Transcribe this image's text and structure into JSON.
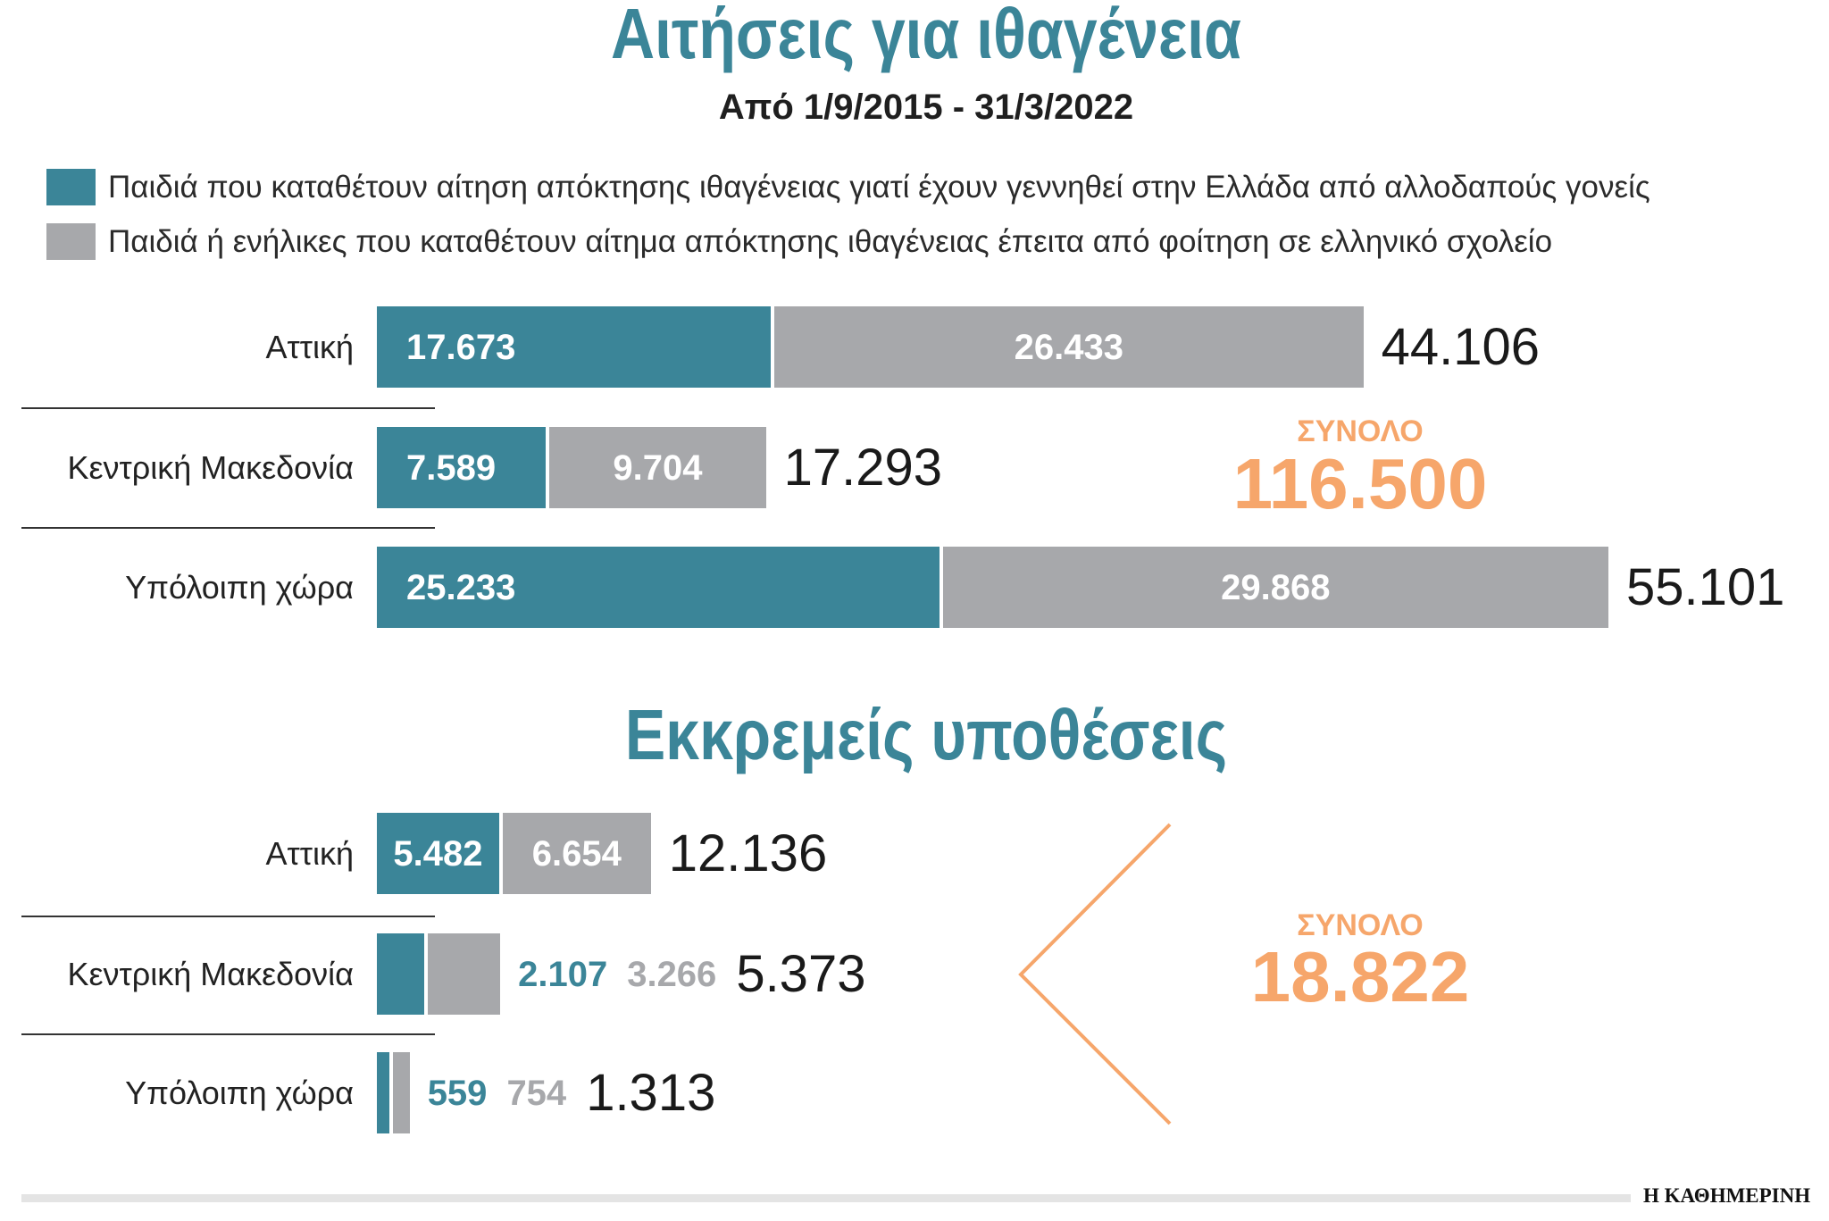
{
  "colors": {
    "title": "#3b8598",
    "accent": "#f6a66b",
    "text": "#1f1f1f",
    "rule": "#e4e4e4"
  },
  "chart_data": [
    {
      "type": "bar",
      "orientation": "horizontal",
      "stacked": true,
      "title": "Αιτήσεις για ιθαγένεια",
      "subtitle": "Από 1/9/2015 - 31/3/2022",
      "grid": false,
      "legend_position": "top-left",
      "categories": [
        "Αττική",
        "Κεντρική Μακεδονία",
        "Υπόλοιπη χώρα"
      ],
      "series": [
        {
          "name": "Παιδιά που καταθέτουν αίτηση απόκτησης ιθαγένειας γιατί έχουν γεννηθεί στην Ελλάδα από αλλοδαπούς γονείς",
          "color": "#3b8598",
          "values": [
            17673,
            7589,
            25233
          ]
        },
        {
          "name": "Παιδιά ή ενήλικες που καταθέτουν αίτημα απόκτησης ιθαγένειας έπειτα από φοίτηση σε ελληνικό σχολείο",
          "color": "#a7a8ab",
          "values": [
            26433,
            9704,
            29868
          ]
        }
      ],
      "totals": [
        44106,
        17293,
        55101
      ],
      "total_label": "ΣΥΝΟΛΟ",
      "grand_total": 116500
    },
    {
      "type": "bar",
      "orientation": "horizontal",
      "stacked": true,
      "title": "Εκκρεμείς υποθέσεις",
      "grid": false,
      "categories": [
        "Αττική",
        "Κεντρική Μακεδονία",
        "Υπόλοιπη χώρα"
      ],
      "series": [
        {
          "color": "#3b8598",
          "values": [
            5482,
            2107,
            559
          ]
        },
        {
          "color": "#a7a8ab",
          "values": [
            6654,
            3266,
            754
          ]
        }
      ],
      "totals": [
        12136,
        5373,
        1313
      ],
      "total_label": "ΣΥΝΟΛΟ",
      "grand_total": 18822
    }
  ],
  "brand": "Η ΚΑΘΗΜΕΡΙΝΗ"
}
